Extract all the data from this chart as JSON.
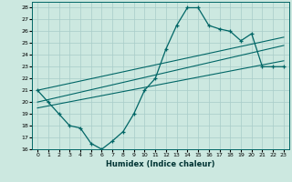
{
  "title": "",
  "xlabel": "Humidex (Indice chaleur)",
  "ylabel": "",
  "xlim": [
    -0.5,
    23.5
  ],
  "ylim": [
    16,
    28.5
  ],
  "yticks": [
    16,
    17,
    18,
    19,
    20,
    21,
    22,
    23,
    24,
    25,
    26,
    27,
    28
  ],
  "xticks": [
    0,
    1,
    2,
    3,
    4,
    5,
    6,
    7,
    8,
    9,
    10,
    11,
    12,
    13,
    14,
    15,
    16,
    17,
    18,
    19,
    20,
    21,
    22,
    23
  ],
  "background_color": "#cce8e0",
  "grid_color": "#a8ccc8",
  "line_color": "#006666",
  "main_data_x": [
    0,
    1,
    2,
    3,
    4,
    5,
    6,
    7,
    8,
    9,
    10,
    11,
    12,
    13,
    14,
    15,
    16,
    17,
    18,
    19,
    20,
    21,
    22,
    23
  ],
  "main_data_y": [
    21,
    20,
    19,
    18,
    17.8,
    16.5,
    16,
    16.7,
    17.5,
    19,
    21,
    22,
    24.5,
    26.5,
    28,
    28,
    26.5,
    26.2,
    26,
    25.2,
    25.8,
    23,
    23,
    23
  ],
  "line1_x": [
    0,
    23
  ],
  "line1_y": [
    21.0,
    25.5
  ],
  "line2_x": [
    0,
    23
  ],
  "line2_y": [
    19.5,
    23.5
  ],
  "line3_x": [
    0,
    23
  ],
  "line3_y": [
    20.0,
    24.8
  ]
}
